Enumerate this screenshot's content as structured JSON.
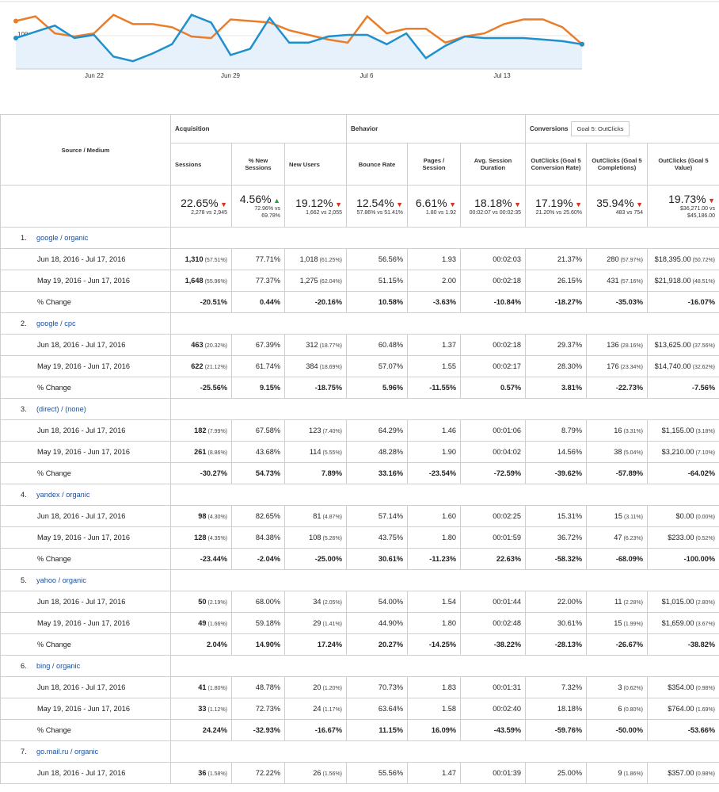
{
  "chart": {
    "y_label": "100",
    "x_ticks": [
      "Jun 22",
      "Jun 29",
      "Jul 6",
      "Jul 13"
    ],
    "colors": {
      "current": "#1f8fce",
      "previous": "#ea7d2a",
      "fill": "#e6f1fb"
    },
    "series_current": [
      100,
      104,
      108,
      100,
      102,
      88,
      85,
      90,
      96,
      115,
      110,
      89,
      93,
      113,
      97,
      97,
      101,
      102,
      102,
      96,
      103,
      87,
      95,
      101,
      100,
      100,
      100,
      99,
      98,
      96
    ],
    "series_previous": [
      111,
      114,
      103,
      101,
      103,
      115,
      109,
      109,
      107,
      101,
      100,
      112,
      111,
      110,
      105,
      102,
      99,
      97,
      114,
      103,
      106,
      106,
      97,
      101,
      103,
      109,
      112,
      112,
      107,
      96
    ]
  },
  "headers": {
    "source_medium": "Source / Medium",
    "acquisition": "Acquisition",
    "behavior": "Behavior",
    "conversions": "Conversions",
    "goal_select": "Goal 5: OutClicks",
    "cols": [
      "Sessions",
      "% New Sessions",
      "New Users",
      "Bounce Rate",
      "Pages / Session",
      "Avg. Session Duration",
      "OutClicks (Goal 5 Conversion Rate)",
      "OutClicks (Goal 5 Completions)",
      "OutClicks (Goal 5 Value)"
    ]
  },
  "totals": [
    {
      "pct": "22.65%",
      "dir": "down",
      "sub": "2,278 vs 2,945"
    },
    {
      "pct": "4.56%",
      "dir": "up",
      "sub": "72.96% vs 69.78%"
    },
    {
      "pct": "19.12%",
      "dir": "down",
      "sub": "1,662 vs 2,055"
    },
    {
      "pct": "12.54%",
      "dir": "down",
      "sub": "57.86% vs 51.41%"
    },
    {
      "pct": "6.61%",
      "dir": "down",
      "sub": "1.80 vs 1.92"
    },
    {
      "pct": "18.18%",
      "dir": "down",
      "sub": "00:02:07 vs 00:02:35"
    },
    {
      "pct": "17.19%",
      "dir": "down",
      "sub": "21.20% vs 25.60%"
    },
    {
      "pct": "35.94%",
      "dir": "down",
      "sub": "483 vs 754"
    },
    {
      "pct": "19.73%",
      "dir": "down",
      "sub": "$36,271.00 vs $45,186.00"
    }
  ],
  "sources": [
    {
      "num": "1.",
      "name": "google / organic",
      "rows": [
        {
          "label": "Jun 18, 2016 - Jul 17, 2016",
          "cells": [
            [
              "1,310",
              "(57.51%)"
            ],
            [
              "77.71%",
              ""
            ],
            [
              "1,018",
              "(61.25%)"
            ],
            [
              "56.56%",
              ""
            ],
            [
              "1.93",
              ""
            ],
            [
              "00:02:03",
              ""
            ],
            [
              "21.37%",
              ""
            ],
            [
              "280",
              "(57.97%)"
            ],
            [
              "$18,395.00",
              "(50.72%)"
            ]
          ]
        },
        {
          "label": "May 19, 2016 - Jun 17, 2016",
          "cells": [
            [
              "1,648",
              "(55.96%)"
            ],
            [
              "77.37%",
              ""
            ],
            [
              "1,275",
              "(62.04%)"
            ],
            [
              "51.15%",
              ""
            ],
            [
              "2.00",
              ""
            ],
            [
              "00:02:18",
              ""
            ],
            [
              "26.15%",
              ""
            ],
            [
              "431",
              "(57.16%)"
            ],
            [
              "$21,918.00",
              "(48.51%)"
            ]
          ]
        },
        {
          "label": "% Change",
          "cells": [
            [
              "-20.51%",
              ""
            ],
            [
              "0.44%",
              ""
            ],
            [
              "-20.16%",
              ""
            ],
            [
              "10.58%",
              ""
            ],
            [
              "-3.63%",
              ""
            ],
            [
              "-10.84%",
              ""
            ],
            [
              "-18.27%",
              ""
            ],
            [
              "-35.03%",
              ""
            ],
            [
              "-16.07%",
              ""
            ]
          ]
        }
      ]
    },
    {
      "num": "2.",
      "name": "google / cpc",
      "rows": [
        {
          "label": "Jun 18, 2016 - Jul 17, 2016",
          "cells": [
            [
              "463",
              "(20.32%)"
            ],
            [
              "67.39%",
              ""
            ],
            [
              "312",
              "(18.77%)"
            ],
            [
              "60.48%",
              ""
            ],
            [
              "1.37",
              ""
            ],
            [
              "00:02:18",
              ""
            ],
            [
              "29.37%",
              ""
            ],
            [
              "136",
              "(28.16%)"
            ],
            [
              "$13,625.00",
              "(37.56%)"
            ]
          ]
        },
        {
          "label": "May 19, 2016 - Jun 17, 2016",
          "cells": [
            [
              "622",
              "(21.12%)"
            ],
            [
              "61.74%",
              ""
            ],
            [
              "384",
              "(18.69%)"
            ],
            [
              "57.07%",
              ""
            ],
            [
              "1.55",
              ""
            ],
            [
              "00:02:17",
              ""
            ],
            [
              "28.30%",
              ""
            ],
            [
              "176",
              "(23.34%)"
            ],
            [
              "$14,740.00",
              "(32.62%)"
            ]
          ]
        },
        {
          "label": "% Change",
          "cells": [
            [
              "-25.56%",
              ""
            ],
            [
              "9.15%",
              ""
            ],
            [
              "-18.75%",
              ""
            ],
            [
              "5.96%",
              ""
            ],
            [
              "-11.55%",
              ""
            ],
            [
              "0.57%",
              ""
            ],
            [
              "3.81%",
              ""
            ],
            [
              "-22.73%",
              ""
            ],
            [
              "-7.56%",
              ""
            ]
          ]
        }
      ]
    },
    {
      "num": "3.",
      "name": "(direct) / (none)",
      "rows": [
        {
          "label": "Jun 18, 2016 - Jul 17, 2016",
          "cells": [
            [
              "182",
              "(7.99%)"
            ],
            [
              "67.58%",
              ""
            ],
            [
              "123",
              "(7.40%)"
            ],
            [
              "64.29%",
              ""
            ],
            [
              "1.46",
              ""
            ],
            [
              "00:01:06",
              ""
            ],
            [
              "8.79%",
              ""
            ],
            [
              "16",
              "(3.31%)"
            ],
            [
              "$1,155.00",
              "(3.18%)"
            ]
          ]
        },
        {
          "label": "May 19, 2016 - Jun 17, 2016",
          "cells": [
            [
              "261",
              "(8.86%)"
            ],
            [
              "43.68%",
              ""
            ],
            [
              "114",
              "(5.55%)"
            ],
            [
              "48.28%",
              ""
            ],
            [
              "1.90",
              ""
            ],
            [
              "00:04:02",
              ""
            ],
            [
              "14.56%",
              ""
            ],
            [
              "38",
              "(5.04%)"
            ],
            [
              "$3,210.00",
              "(7.10%)"
            ]
          ]
        },
        {
          "label": "% Change",
          "cells": [
            [
              "-30.27%",
              ""
            ],
            [
              "54.73%",
              ""
            ],
            [
              "7.89%",
              ""
            ],
            [
              "33.16%",
              ""
            ],
            [
              "-23.54%",
              ""
            ],
            [
              "-72.59%",
              ""
            ],
            [
              "-39.62%",
              ""
            ],
            [
              "-57.89%",
              ""
            ],
            [
              "-64.02%",
              ""
            ]
          ]
        }
      ]
    },
    {
      "num": "4.",
      "name": "yandex / organic",
      "rows": [
        {
          "label": "Jun 18, 2016 - Jul 17, 2016",
          "cells": [
            [
              "98",
              "(4.30%)"
            ],
            [
              "82.65%",
              ""
            ],
            [
              "81",
              "(4.87%)"
            ],
            [
              "57.14%",
              ""
            ],
            [
              "1.60",
              ""
            ],
            [
              "00:02:25",
              ""
            ],
            [
              "15.31%",
              ""
            ],
            [
              "15",
              "(3.11%)"
            ],
            [
              "$0.00",
              "(0.00%)"
            ]
          ]
        },
        {
          "label": "May 19, 2016 - Jun 17, 2016",
          "cells": [
            [
              "128",
              "(4.35%)"
            ],
            [
              "84.38%",
              ""
            ],
            [
              "108",
              "(5.26%)"
            ],
            [
              "43.75%",
              ""
            ],
            [
              "1.80",
              ""
            ],
            [
              "00:01:59",
              ""
            ],
            [
              "36.72%",
              ""
            ],
            [
              "47",
              "(6.23%)"
            ],
            [
              "$233.00",
              "(0.52%)"
            ]
          ]
        },
        {
          "label": "% Change",
          "cells": [
            [
              "-23.44%",
              ""
            ],
            [
              "-2.04%",
              ""
            ],
            [
              "-25.00%",
              ""
            ],
            [
              "30.61%",
              ""
            ],
            [
              "-11.23%",
              ""
            ],
            [
              "22.63%",
              ""
            ],
            [
              "-58.32%",
              ""
            ],
            [
              "-68.09%",
              ""
            ],
            [
              "-100.00%",
              ""
            ]
          ]
        }
      ]
    },
    {
      "num": "5.",
      "name": "yahoo / organic",
      "rows": [
        {
          "label": "Jun 18, 2016 - Jul 17, 2016",
          "cells": [
            [
              "50",
              "(2.19%)"
            ],
            [
              "68.00%",
              ""
            ],
            [
              "34",
              "(2.05%)"
            ],
            [
              "54.00%",
              ""
            ],
            [
              "1.54",
              ""
            ],
            [
              "00:01:44",
              ""
            ],
            [
              "22.00%",
              ""
            ],
            [
              "11",
              "(2.28%)"
            ],
            [
              "$1,015.00",
              "(2.80%)"
            ]
          ]
        },
        {
          "label": "May 19, 2016 - Jun 17, 2016",
          "cells": [
            [
              "49",
              "(1.66%)"
            ],
            [
              "59.18%",
              ""
            ],
            [
              "29",
              "(1.41%)"
            ],
            [
              "44.90%",
              ""
            ],
            [
              "1.80",
              ""
            ],
            [
              "00:02:48",
              ""
            ],
            [
              "30.61%",
              ""
            ],
            [
              "15",
              "(1.99%)"
            ],
            [
              "$1,659.00",
              "(3.67%)"
            ]
          ]
        },
        {
          "label": "% Change",
          "cells": [
            [
              "2.04%",
              ""
            ],
            [
              "14.90%",
              ""
            ],
            [
              "17.24%",
              ""
            ],
            [
              "20.27%",
              ""
            ],
            [
              "-14.25%",
              ""
            ],
            [
              "-38.22%",
              ""
            ],
            [
              "-28.13%",
              ""
            ],
            [
              "-26.67%",
              ""
            ],
            [
              "-38.82%",
              ""
            ]
          ]
        }
      ]
    },
    {
      "num": "6.",
      "name": "bing / organic",
      "rows": [
        {
          "label": "Jun 18, 2016 - Jul 17, 2016",
          "cells": [
            [
              "41",
              "(1.80%)"
            ],
            [
              "48.78%",
              ""
            ],
            [
              "20",
              "(1.20%)"
            ],
            [
              "70.73%",
              ""
            ],
            [
              "1.83",
              ""
            ],
            [
              "00:01:31",
              ""
            ],
            [
              "7.32%",
              ""
            ],
            [
              "3",
              "(0.62%)"
            ],
            [
              "$354.00",
              "(0.98%)"
            ]
          ]
        },
        {
          "label": "May 19, 2016 - Jun 17, 2016",
          "cells": [
            [
              "33",
              "(1.12%)"
            ],
            [
              "72.73%",
              ""
            ],
            [
              "24",
              "(1.17%)"
            ],
            [
              "63.64%",
              ""
            ],
            [
              "1.58",
              ""
            ],
            [
              "00:02:40",
              ""
            ],
            [
              "18.18%",
              ""
            ],
            [
              "6",
              "(0.80%)"
            ],
            [
              "$764.00",
              "(1.69%)"
            ]
          ]
        },
        {
          "label": "% Change",
          "cells": [
            [
              "24.24%",
              ""
            ],
            [
              "-32.93%",
              ""
            ],
            [
              "-16.67%",
              ""
            ],
            [
              "11.15%",
              ""
            ],
            [
              "16.09%",
              ""
            ],
            [
              "-43.59%",
              ""
            ],
            [
              "-59.76%",
              ""
            ],
            [
              "-50.00%",
              ""
            ],
            [
              "-53.66%",
              ""
            ]
          ]
        }
      ]
    },
    {
      "num": "7.",
      "name": "go.mail.ru / organic",
      "rows": [
        {
          "label": "Jun 18, 2016 - Jul 17, 2016",
          "cells": [
            [
              "36",
              "(1.58%)"
            ],
            [
              "72.22%",
              ""
            ],
            [
              "26",
              "(1.56%)"
            ],
            [
              "55.56%",
              ""
            ],
            [
              "1.47",
              ""
            ],
            [
              "00:01:39",
              ""
            ],
            [
              "25.00%",
              ""
            ],
            [
              "9",
              "(1.86%)"
            ],
            [
              "$357.00",
              "(0.98%)"
            ]
          ]
        }
      ]
    }
  ]
}
